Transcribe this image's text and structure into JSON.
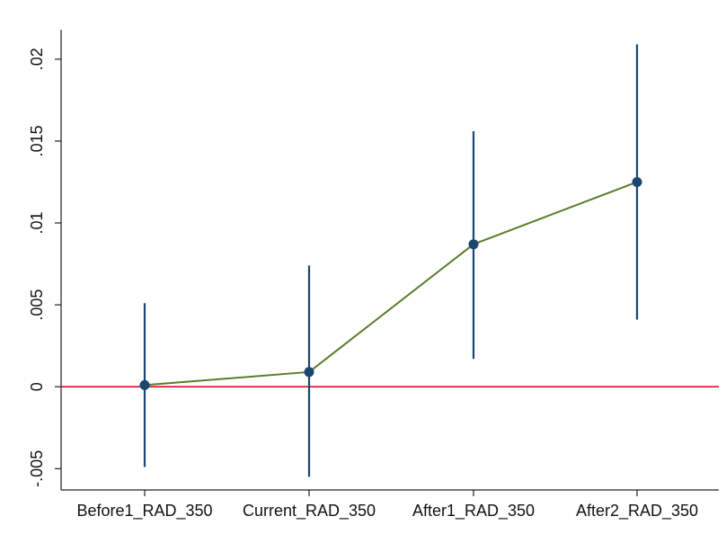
{
  "chart_data": {
    "type": "scatter",
    "title": "",
    "xlabel": "",
    "ylabel": "",
    "categories": [
      "Before1_RAD_350",
      "Current_RAD_350",
      "After1_RAD_350",
      "After2_RAD_350"
    ],
    "y_ticks": [
      "-.005",
      "0",
      ".005",
      ".01",
      ".015",
      ".02"
    ],
    "y_tick_values": [
      -0.005,
      0,
      0.005,
      0.01,
      0.015,
      0.02
    ],
    "ylim": [
      -0.0063,
      0.0218
    ],
    "grid": false,
    "reference_line": {
      "y": 0,
      "color": "#d0102a"
    },
    "series": [
      {
        "values": [
          0.0001,
          0.0009,
          0.0087,
          0.0125
        ],
        "ci_low": [
          -0.0049,
          -0.0055,
          0.0017,
          0.0041
        ],
        "ci_high": [
          0.0051,
          0.0074,
          0.0156,
          0.0209
        ],
        "point_color": "#1a476f",
        "line_color": "#5a7d2a",
        "ci_color": "#1a476f"
      }
    ]
  }
}
